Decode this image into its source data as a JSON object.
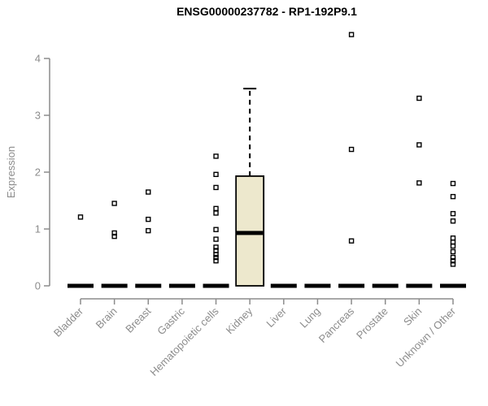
{
  "chart_data": {
    "type": "boxplot",
    "title": "ENSG00000237782 - RP1-192P9.1",
    "ylabel": "Expression",
    "xlabel": "",
    "ylim": [
      0,
      4
    ],
    "yticks": [
      0,
      1,
      2,
      3,
      4
    ],
    "grid": "off",
    "legend": "none",
    "marker_style": "open-square",
    "colors": {
      "box_fill": "#ede8cd",
      "box_border": "#000000",
      "median": "#000000",
      "axis": "#8c8c8c",
      "label": "#8c8c8c",
      "title": "#000000",
      "background": "#ffffff"
    },
    "categories": [
      "Bladder",
      "Brain",
      "Breast",
      "Gastric",
      "Hematopoietic cells",
      "Kidney",
      "Liver",
      "Lung",
      "Pancreas",
      "Prostate",
      "Skin",
      "Unknown / Other"
    ],
    "boxes": [
      {
        "category": "Bladder",
        "q1": 0,
        "median": 0,
        "q3": 0,
        "whisker_low": 0,
        "whisker_high": 0,
        "outliers": [
          1.21
        ]
      },
      {
        "category": "Brain",
        "q1": 0,
        "median": 0,
        "q3": 0,
        "whisker_low": 0,
        "whisker_high": 0,
        "outliers": [
          1.45,
          0.93,
          0.87
        ]
      },
      {
        "category": "Breast",
        "q1": 0,
        "median": 0,
        "q3": 0,
        "whisker_low": 0,
        "whisker_high": 0,
        "outliers": [
          1.65,
          1.17,
          0.97
        ]
      },
      {
        "category": "Gastric",
        "q1": 0,
        "median": 0,
        "q3": 0,
        "whisker_low": 0,
        "whisker_high": 0,
        "outliers": []
      },
      {
        "category": "Hematopoietic cells",
        "q1": 0,
        "median": 0,
        "q3": 0,
        "whisker_low": 0,
        "whisker_high": 0,
        "outliers": [
          2.28,
          1.96,
          1.73,
          1.36,
          1.28,
          0.99,
          0.82,
          0.68,
          0.62,
          0.55,
          0.5,
          0.44
        ]
      },
      {
        "category": "Kidney",
        "q1": 0,
        "median": 0.93,
        "q3": 1.93,
        "whisker_low": 0,
        "whisker_high": 3.47,
        "outliers": []
      },
      {
        "category": "Liver",
        "q1": 0,
        "median": 0,
        "q3": 0,
        "whisker_low": 0,
        "whisker_high": 0,
        "outliers": []
      },
      {
        "category": "Lung",
        "q1": 0,
        "median": 0,
        "q3": 0,
        "whisker_low": 0,
        "whisker_high": 0,
        "outliers": []
      },
      {
        "category": "Pancreas",
        "q1": 0,
        "median": 0,
        "q3": 0,
        "whisker_low": 0,
        "whisker_high": 0,
        "outliers": [
          4.42,
          2.4,
          0.79
        ]
      },
      {
        "category": "Prostate",
        "q1": 0,
        "median": 0,
        "q3": 0,
        "whisker_low": 0,
        "whisker_high": 0,
        "outliers": []
      },
      {
        "category": "Skin",
        "q1": 0,
        "median": 0,
        "q3": 0,
        "whisker_low": 0,
        "whisker_high": 0,
        "outliers": [
          3.3,
          2.48,
          1.81
        ]
      },
      {
        "category": "Unknown / Other",
        "q1": 0,
        "median": 0,
        "q3": 0,
        "whisker_low": 0,
        "whisker_high": 0,
        "outliers": [
          1.8,
          1.57,
          1.27,
          1.14,
          0.84,
          0.77,
          0.7,
          0.6,
          0.5,
          0.44,
          0.38
        ]
      }
    ]
  }
}
